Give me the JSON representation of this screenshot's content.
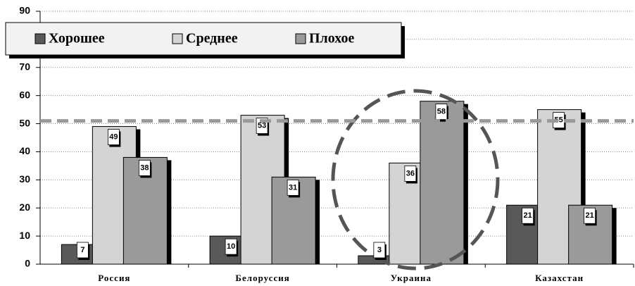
{
  "chart_data": {
    "type": "bar",
    "categories": [
      "Россия",
      "Белоруссия",
      "Украина",
      "Казахстан"
    ],
    "series": [
      {
        "name": "Хорошее",
        "color": "#595959",
        "values": [
          7,
          10,
          3,
          21
        ]
      },
      {
        "name": "Среднее",
        "color": "#d4d4d4",
        "values": [
          49,
          53,
          36,
          55
        ]
      },
      {
        "name": "Плохое",
        "color": "#9a9a9a",
        "values": [
          38,
          31,
          58,
          21
        ]
      }
    ],
    "ylim": [
      0,
      90
    ],
    "yticks": [
      0,
      10,
      20,
      30,
      40,
      50,
      60,
      70,
      80,
      90
    ],
    "grid": true,
    "reference_line": 51,
    "legend": "top-left"
  }
}
